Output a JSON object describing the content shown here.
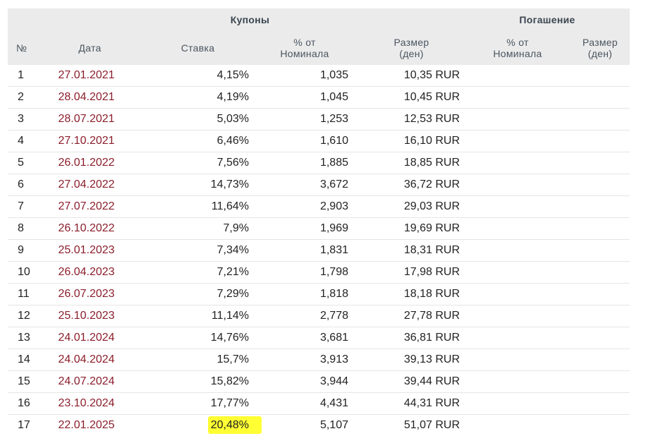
{
  "header": {
    "group_coupons": "Купоны",
    "group_redemption": "Погашение",
    "col_num": "№",
    "col_date": "Дата",
    "col_rate": "Ставка",
    "col_pct_line1": "% от",
    "col_pct_line2": "Номинала",
    "col_size_line1": "Размер",
    "col_size_line2": "(ден)",
    "col_red_pct_line1": "% от",
    "col_red_pct_line2": "Номинала",
    "col_red_size_line1": "Размер",
    "col_red_size_line2": "(ден)"
  },
  "rows": [
    {
      "num": "1",
      "date": "27.01.2021",
      "rate": "4,15%",
      "pct": "1,035",
      "size": "10,35 RUR"
    },
    {
      "num": "2",
      "date": "28.04.2021",
      "rate": "4,19%",
      "pct": "1,045",
      "size": "10,45 RUR"
    },
    {
      "num": "3",
      "date": "28.07.2021",
      "rate": "5,03%",
      "pct": "1,253",
      "size": "12,53 RUR"
    },
    {
      "num": "4",
      "date": "27.10.2021",
      "rate": "6,46%",
      "pct": "1,610",
      "size": "16,10 RUR"
    },
    {
      "num": "5",
      "date": "26.01.2022",
      "rate": "7,56%",
      "pct": "1,885",
      "size": "18,85 RUR"
    },
    {
      "num": "6",
      "date": "27.04.2022",
      "rate": "14,73%",
      "pct": "3,672",
      "size": "36,72 RUR"
    },
    {
      "num": "7",
      "date": "27.07.2022",
      "rate": "11,64%",
      "pct": "2,903",
      "size": "29,03 RUR"
    },
    {
      "num": "8",
      "date": "26.10.2022",
      "rate": "7,9%",
      "pct": "1,969",
      "size": "19,69 RUR"
    },
    {
      "num": "9",
      "date": "25.01.2023",
      "rate": "7,34%",
      "pct": "1,831",
      "size": "18,31 RUR"
    },
    {
      "num": "10",
      "date": "26.04.2023",
      "rate": "7,21%",
      "pct": "1,798",
      "size": "17,98 RUR"
    },
    {
      "num": "11",
      "date": "26.07.2023",
      "rate": "7,29%",
      "pct": "1,818",
      "size": "18,18 RUR"
    },
    {
      "num": "12",
      "date": "25.10.2023",
      "rate": "11,14%",
      "pct": "2,778",
      "size": "27,78 RUR"
    },
    {
      "num": "13",
      "date": "24.01.2024",
      "rate": "14,76%",
      "pct": "3,681",
      "size": "36,81 RUR"
    },
    {
      "num": "14",
      "date": "24.04.2024",
      "rate": "15,7%",
      "pct": "3,913",
      "size": "39,13 RUR"
    },
    {
      "num": "15",
      "date": "24.07.2024",
      "rate": "15,82%",
      "pct": "3,944",
      "size": "39,44 RUR"
    },
    {
      "num": "16",
      "date": "23.10.2024",
      "rate": "17,77%",
      "pct": "4,431",
      "size": "44,31 RUR"
    },
    {
      "num": "17",
      "date": "22.01.2025",
      "rate": "20,48%",
      "pct": "5,107",
      "size": "51,07 RUR",
      "highlight_rate": true
    }
  ],
  "colors": {
    "header_bg": "#ebebeb",
    "date_text": "#8b1e2b",
    "highlight": "#ffff33"
  }
}
